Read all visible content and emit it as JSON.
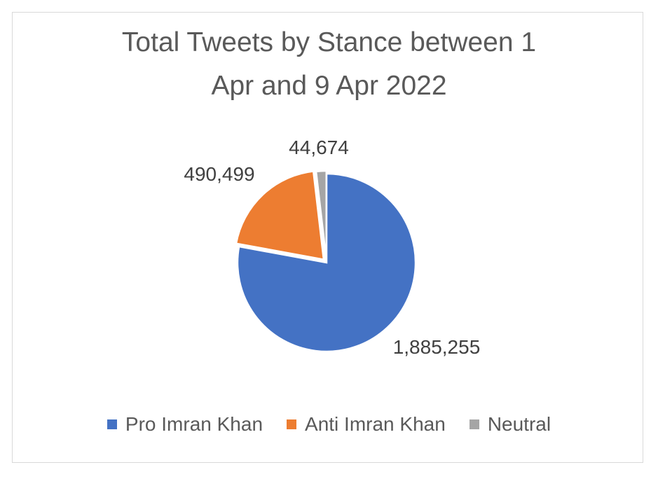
{
  "chart_data": {
    "type": "pie",
    "title_lines": [
      "Total Tweets by Stance between 1",
      "Apr and 9 Apr 2022"
    ],
    "slices": [
      {
        "label": "Pro Imran Khan",
        "value": 1885255,
        "display": "1,885,255",
        "color": "#4472c4"
      },
      {
        "label": "Anti Imran Khan",
        "value": 490499,
        "display": "490,499",
        "color": "#ed7d31"
      },
      {
        "label": "Neutral",
        "value": 44674,
        "display": "44,674",
        "color": "#a5a5a5"
      }
    ],
    "legend_position": "bottom"
  }
}
